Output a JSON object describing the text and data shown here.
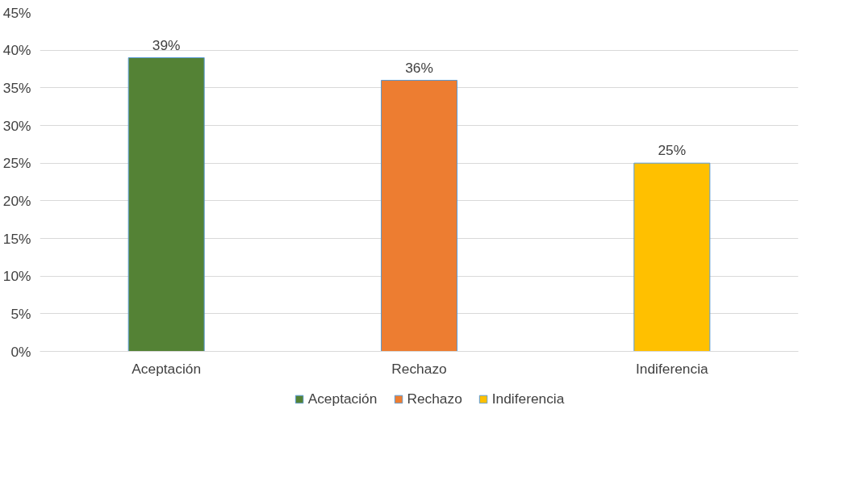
{
  "chart_data": {
    "type": "bar",
    "categories": [
      "Aceptación",
      "Rechazo",
      "Indiferencia"
    ],
    "series": [
      {
        "name": "Aceptación",
        "color": "#548235",
        "values": [
          39,
          null,
          null
        ],
        "value_labels": [
          "39%",
          null,
          null
        ]
      },
      {
        "name": "Rechazo",
        "color": "#ed7d31",
        "values": [
          null,
          36,
          null
        ],
        "value_labels": [
          null,
          "36%",
          null
        ]
      },
      {
        "name": "Indiferencia",
        "color": "#ffc000",
        "values": [
          null,
          null,
          25
        ],
        "value_labels": [
          null,
          null,
          "25%"
        ]
      }
    ],
    "ylim": [
      0,
      45
    ],
    "yticks": [
      {
        "value": 0,
        "label": "0%"
      },
      {
        "value": 5,
        "label": "5%"
      },
      {
        "value": 10,
        "label": "10%"
      },
      {
        "value": 15,
        "label": "15%"
      },
      {
        "value": 20,
        "label": "20%"
      },
      {
        "value": 25,
        "label": "25%"
      },
      {
        "value": 30,
        "label": "30%"
      },
      {
        "value": 35,
        "label": "35%"
      },
      {
        "value": 40,
        "label": "40%"
      },
      {
        "value": 45,
        "label": "45%"
      }
    ],
    "grid": "y",
    "legend": "bottom"
  }
}
